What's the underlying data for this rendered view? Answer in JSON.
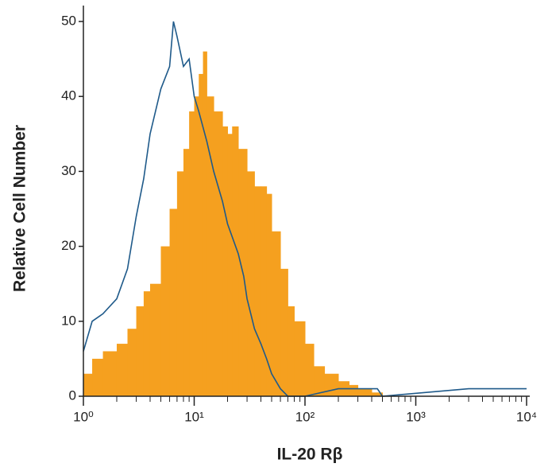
{
  "chart_data": {
    "type": "histogram-overlay",
    "x_label": "IL-20 Rβ",
    "y_label": "Relative Cell Number",
    "xscale": "log",
    "xlim": [
      1,
      10000
    ],
    "xticks": [
      {
        "value": 1,
        "label": "10⁰"
      },
      {
        "value": 10,
        "label": "10¹"
      },
      {
        "value": 100,
        "label": "10²"
      },
      {
        "value": 1000,
        "label": "10³"
      },
      {
        "value": 10000,
        "label": "10⁴"
      }
    ],
    "ylim": [
      0,
      50
    ],
    "yticks": [
      0,
      10,
      20,
      30,
      40,
      50
    ],
    "series": [
      {
        "color": "#f5a01f",
        "fill": true,
        "x": [
          1,
          1.2,
          1.5,
          2,
          2.5,
          3,
          3.5,
          4,
          5,
          6,
          7,
          8,
          9,
          10,
          11,
          12,
          13,
          15,
          18,
          20,
          22,
          25,
          30,
          35,
          40,
          45,
          50,
          60,
          70,
          80,
          100,
          120,
          150,
          200,
          250,
          300,
          400,
          500
        ],
        "values": [
          3,
          5,
          6,
          7,
          9,
          12,
          14,
          15,
          20,
          25,
          30,
          33,
          38,
          40,
          43,
          46,
          40,
          38,
          36,
          35,
          36,
          33,
          30,
          28,
          28,
          27,
          22,
          17,
          12,
          10,
          7,
          4,
          3,
          2,
          1.5,
          1,
          0.5,
          0
        ]
      },
      {
        "color": "#1f5a8a",
        "fill": false,
        "x": [
          1,
          1.2,
          1.5,
          2,
          2.5,
          3,
          3.5,
          4,
          5,
          6,
          6.5,
          7,
          8,
          9,
          10,
          11,
          13,
          15,
          18,
          20,
          25,
          28,
          30,
          35,
          40,
          45,
          50,
          60,
          70,
          100,
          200,
          300,
          450,
          500,
          3000,
          4500,
          7000,
          10000
        ],
        "values": [
          6,
          10,
          11,
          13,
          17,
          24,
          29,
          35,
          41,
          44,
          50,
          48,
          44,
          45,
          40,
          38,
          34,
          30,
          26,
          23,
          19,
          16,
          13,
          9,
          7,
          5,
          3,
          1,
          0,
          0,
          1,
          1,
          1,
          0,
          1,
          1,
          1,
          1
        ]
      }
    ]
  }
}
